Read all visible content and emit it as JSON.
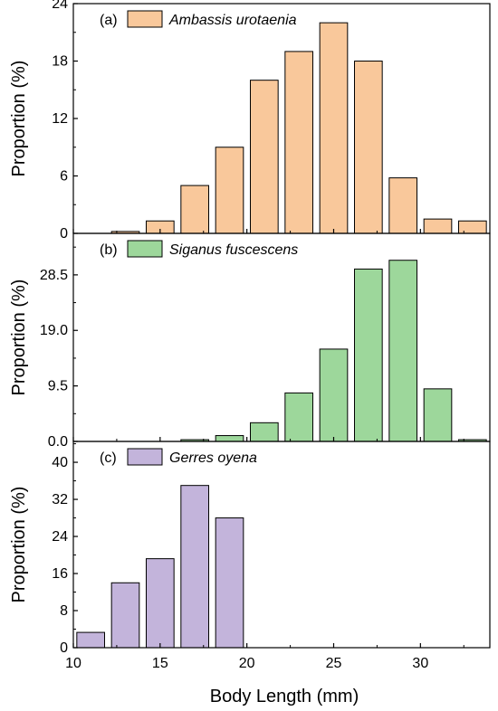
{
  "shared_x_axis": {
    "label": "Body Length (mm)",
    "range": [
      10,
      34
    ],
    "ticks": [
      10,
      15,
      20,
      25,
      30
    ]
  },
  "chart_data": [
    {
      "type": "bar",
      "panel_label": "(a)",
      "series": [
        {
          "name": "Ambassis urotaenia",
          "color": "#f9c89b",
          "x": [
            13,
            15,
            17,
            19,
            21,
            23,
            25,
            27,
            29,
            31,
            33
          ],
          "values": [
            0.2,
            1.3,
            5.0,
            9.0,
            16.0,
            19.0,
            22.0,
            18.0,
            5.8,
            1.5,
            1.3
          ]
        }
      ],
      "ylabel": "Proportion (%)",
      "ylim": [
        0,
        24
      ],
      "yticks": [
        "0",
        "6",
        "12",
        "18",
        "24"
      ],
      "ytick_values": [
        0,
        6,
        12,
        18,
        24
      ]
    },
    {
      "type": "bar",
      "panel_label": "(b)",
      "series": [
        {
          "name": "Siganus fuscescens",
          "color": "#9dd79b",
          "x": [
            17,
            19,
            21,
            23,
            25,
            27,
            29,
            31,
            33
          ],
          "values": [
            0.3,
            1.0,
            3.2,
            8.3,
            15.8,
            29.5,
            31.0,
            9.0,
            0.3
          ]
        }
      ],
      "ylabel": "Proportion (%)",
      "ylim": [
        0,
        35.6
      ],
      "yticks": [
        "0.0",
        "9.5",
        "19.0",
        "28.5"
      ],
      "ytick_values": [
        0,
        9.5,
        19.0,
        28.5
      ]
    },
    {
      "type": "bar",
      "panel_label": "(c)",
      "series": [
        {
          "name": "Gerres oyena",
          "color": "#c3b4db",
          "x": [
            11,
            13,
            15,
            17,
            19
          ],
          "values": [
            3.3,
            14.0,
            19.2,
            35.0,
            28.0
          ]
        }
      ],
      "ylabel": "Proportion (%)",
      "ylim": [
        0,
        44.5
      ],
      "yticks": [
        "0",
        "8",
        "16",
        "24",
        "32",
        "40"
      ],
      "ytick_values": [
        0,
        8,
        16,
        24,
        32,
        40
      ]
    }
  ]
}
